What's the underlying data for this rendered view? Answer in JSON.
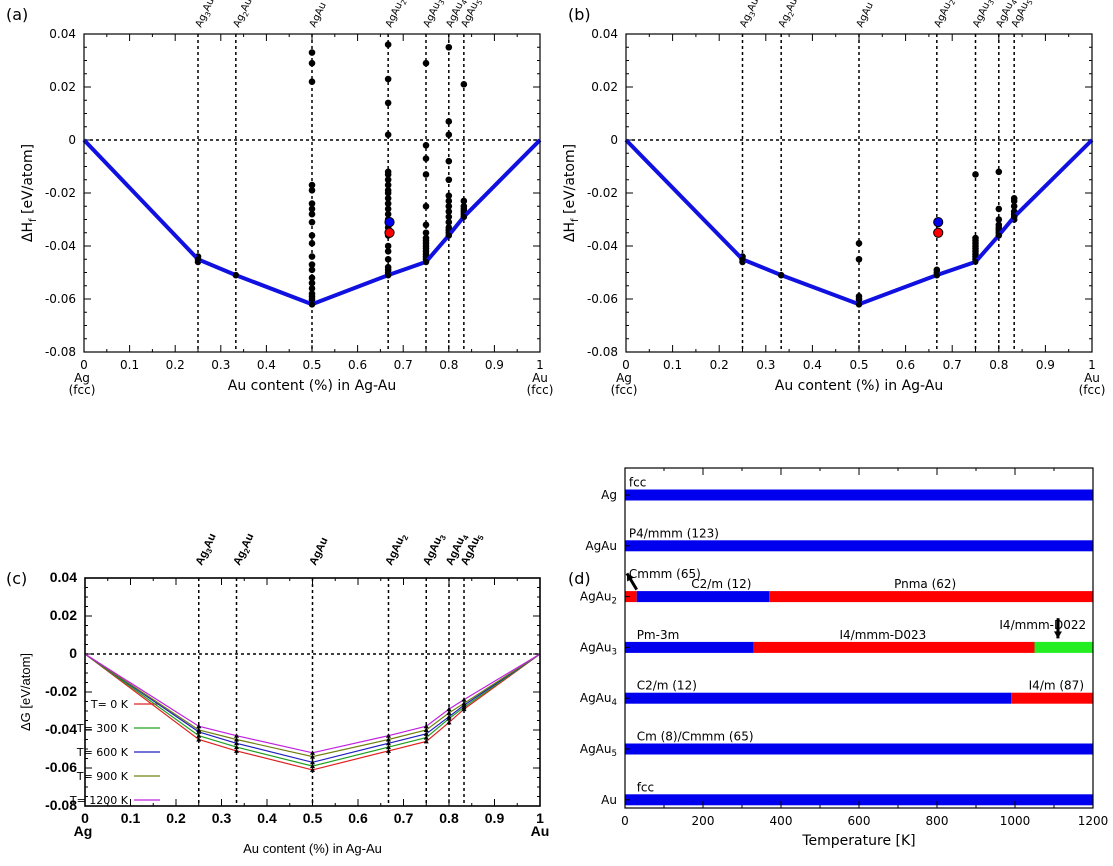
{
  "colors": {
    "hull": "#1010e0",
    "point": "#000000",
    "red": "#ff0000",
    "blue": "#0000ee",
    "green": "#22ee22"
  },
  "chart_data": [
    {
      "type": "scatter",
      "panel": "(a)",
      "xlabel": "Au content (%) in Ag-Au",
      "ylabel_main": "ΔH",
      "ylabel_sub": "f",
      "ylabel_unit": " [eV/atom]",
      "x_ticks": [
        "0",
        "0.1",
        "0.2",
        "0.3",
        "0.4",
        "0.5",
        "0.6",
        "0.7",
        "0.8",
        "0.9",
        "1"
      ],
      "y_ticks": [
        "-0.08",
        "-0.06",
        "-0.04",
        "-0.02",
        "0",
        "0.02",
        "0.04"
      ],
      "xlim": [
        0,
        1
      ],
      "ylim": [
        -0.08,
        0.04
      ],
      "end_labels": {
        "left": [
          "Ag",
          "(fcc)"
        ],
        "right": [
          "Au",
          "(fcc)"
        ]
      },
      "phase_lines": [
        {
          "x": 0.25,
          "base": "Ag",
          "sub": "3",
          "tail": "Au"
        },
        {
          "x": 0.333,
          "base": "Ag",
          "sub": "2",
          "tail": "Au"
        },
        {
          "x": 0.5,
          "base": "AgAu",
          "sub": "",
          "tail": ""
        },
        {
          "x": 0.667,
          "base": "AgAu",
          "sub": "2",
          "tail": ""
        },
        {
          "x": 0.75,
          "base": "AgAu",
          "sub": "3",
          "tail": ""
        },
        {
          "x": 0.8,
          "base": "AgAu",
          "sub": "4",
          "tail": ""
        },
        {
          "x": 0.833,
          "base": "AgAu",
          "sub": "5",
          "tail": ""
        }
      ],
      "hull": {
        "x": [
          0,
          0.25,
          0.333,
          0.5,
          0.667,
          0.75,
          0.8,
          0.833,
          1
        ],
        "y": [
          0,
          -0.045,
          -0.051,
          -0.062,
          -0.051,
          -0.046,
          -0.036,
          -0.029,
          0
        ]
      },
      "points": [
        {
          "x": 0.25,
          "y": [
            -0.044,
            -0.045,
            -0.046
          ]
        },
        {
          "x": 0.333,
          "y": [
            -0.051
          ]
        },
        {
          "x": 0.5,
          "y": [
            0.033,
            0.029,
            0.022,
            -0.017,
            -0.019,
            -0.024,
            -0.026,
            -0.028,
            -0.031,
            -0.036,
            -0.039,
            -0.044,
            -0.047,
            -0.049,
            -0.052,
            -0.054,
            -0.056,
            -0.058,
            -0.059,
            -0.06,
            -0.061,
            -0.062
          ]
        },
        {
          "x": 0.667,
          "y": [
            0.036,
            0.023,
            0.014,
            0.002,
            -0.012,
            -0.013,
            -0.015,
            -0.017,
            -0.019,
            -0.02,
            -0.022,
            -0.024,
            -0.026,
            -0.028,
            -0.03,
            -0.033,
            -0.036,
            -0.04,
            -0.042,
            -0.045,
            -0.048,
            -0.049,
            -0.05,
            -0.051
          ]
        },
        {
          "x": 0.75,
          "y": [
            0.029,
            -0.002,
            -0.007,
            -0.013,
            -0.025,
            -0.032,
            -0.035,
            -0.037,
            -0.038,
            -0.039,
            -0.04,
            -0.041,
            -0.042,
            -0.043,
            -0.044,
            -0.045,
            -0.046
          ]
        },
        {
          "x": 0.8,
          "y": [
            0.035,
            0.007,
            0.002,
            -0.008,
            -0.015,
            -0.021,
            -0.023,
            -0.025,
            -0.027,
            -0.029,
            -0.031,
            -0.033,
            -0.034,
            -0.035,
            -0.036
          ]
        },
        {
          "x": 0.833,
          "y": [
            0.021,
            -0.023,
            -0.025,
            -0.026,
            -0.027,
            -0.028,
            -0.029
          ]
        }
      ],
      "colored_points": [
        {
          "x": 0.67,
          "y": -0.031,
          "color": "#0000ee"
        },
        {
          "x": 0.67,
          "y": -0.035,
          "color": "#ff0000"
        }
      ]
    },
    {
      "type": "scatter",
      "panel": "(b)",
      "xlabel": "Au content (%) in Ag-Au",
      "ylabel_main": "ΔH",
      "ylabel_sub": "f",
      "ylabel_unit": " [eV/atom]",
      "x_ticks": [
        "0",
        "0.1",
        "0.2",
        "0.3",
        "0.4",
        "0.5",
        "0.6",
        "0.7",
        "0.8",
        "0.9",
        "1"
      ],
      "y_ticks": [
        "-0.08",
        "-0.06",
        "-0.04",
        "-0.02",
        "0",
        "0.02",
        "0.04"
      ],
      "xlim": [
        0,
        1
      ],
      "ylim": [
        -0.08,
        0.04
      ],
      "end_labels": {
        "left": [
          "Ag",
          "(fcc)"
        ],
        "right": [
          "Au",
          "(fcc)"
        ]
      },
      "phase_lines": [
        {
          "x": 0.25,
          "base": "Ag",
          "sub": "3",
          "tail": "Au"
        },
        {
          "x": 0.333,
          "base": "Ag",
          "sub": "2",
          "tail": "Au"
        },
        {
          "x": 0.5,
          "base": "AgAu",
          "sub": "",
          "tail": ""
        },
        {
          "x": 0.667,
          "base": "AgAu",
          "sub": "2",
          "tail": ""
        },
        {
          "x": 0.75,
          "base": "AgAu",
          "sub": "3",
          "tail": ""
        },
        {
          "x": 0.8,
          "base": "AgAu",
          "sub": "4",
          "tail": ""
        },
        {
          "x": 0.833,
          "base": "AgAu",
          "sub": "5",
          "tail": ""
        }
      ],
      "hull": {
        "x": [
          0,
          0.25,
          0.333,
          0.5,
          0.667,
          0.75,
          0.8,
          0.833,
          1
        ],
        "y": [
          0,
          -0.045,
          -0.051,
          -0.062,
          -0.051,
          -0.046,
          -0.036,
          -0.029,
          0
        ]
      },
      "points": [
        {
          "x": 0.25,
          "y": [
            -0.044,
            -0.045,
            -0.046
          ]
        },
        {
          "x": 0.333,
          "y": [
            -0.051
          ]
        },
        {
          "x": 0.5,
          "y": [
            -0.039,
            -0.045,
            -0.059,
            -0.06,
            -0.061,
            -0.062
          ]
        },
        {
          "x": 0.667,
          "y": [
            -0.049,
            -0.05,
            -0.051
          ]
        },
        {
          "x": 0.75,
          "y": [
            -0.013,
            -0.037,
            -0.038,
            -0.039,
            -0.04,
            -0.041,
            -0.042,
            -0.043,
            -0.044,
            -0.045
          ]
        },
        {
          "x": 0.8,
          "y": [
            -0.012,
            -0.026,
            -0.03,
            -0.032,
            -0.033,
            -0.034,
            -0.035,
            -0.036
          ]
        },
        {
          "x": 0.833,
          "y": [
            -0.022,
            -0.023,
            -0.025,
            -0.027,
            -0.028,
            -0.029,
            -0.03
          ]
        }
      ],
      "colored_points": [
        {
          "x": 0.67,
          "y": -0.031,
          "color": "#0000ee"
        },
        {
          "x": 0.67,
          "y": -0.035,
          "color": "#ff0000"
        }
      ]
    },
    {
      "type": "line",
      "panel": "(c)",
      "xlabel": "Au content (%) in Ag-Au",
      "ylabel": "ΔG [eV/atom]",
      "x_ticks": [
        "0",
        "0.1",
        "0.2",
        "0.3",
        "0.4",
        "0.5",
        "0.6",
        "0.7",
        "0.8",
        "0.9",
        "1"
      ],
      "y_ticks": [
        "-0.08",
        "-0.06",
        "-0.04",
        "-0.02",
        "0",
        "0.02",
        "0.04"
      ],
      "xlim": [
        0,
        1
      ],
      "ylim": [
        -0.08,
        0.04
      ],
      "end_labels": {
        "left": [
          "Ag"
        ],
        "right": [
          "Au"
        ]
      },
      "phase_lines": [
        {
          "x": 0.25,
          "base": "Ag",
          "sub": "3",
          "tail": "Au"
        },
        {
          "x": 0.333,
          "base": "Ag",
          "sub": "2",
          "tail": "Au"
        },
        {
          "x": 0.5,
          "base": "AgAu",
          "sub": "",
          "tail": ""
        },
        {
          "x": 0.667,
          "base": "AgAu",
          "sub": "2",
          "tail": ""
        },
        {
          "x": 0.75,
          "base": "AgAu",
          "sub": "3",
          "tail": ""
        },
        {
          "x": 0.8,
          "base": "AgAu",
          "sub": "4",
          "tail": ""
        },
        {
          "x": 0.833,
          "base": "AgAu",
          "sub": "5",
          "tail": ""
        }
      ],
      "x": [
        0,
        0.25,
        0.333,
        0.5,
        0.667,
        0.75,
        0.8,
        0.833,
        1
      ],
      "series": [
        {
          "name": "T= 0 K",
          "color": "#e02020",
          "values": [
            0,
            -0.045,
            -0.051,
            -0.061,
            -0.051,
            -0.046,
            -0.036,
            -0.029,
            0
          ]
        },
        {
          "name": "T= 300 K",
          "color": "#20a020",
          "values": [
            0,
            -0.043,
            -0.049,
            -0.059,
            -0.049,
            -0.044,
            -0.034,
            -0.028,
            0
          ]
        },
        {
          "name": "T= 600 K",
          "color": "#2020c0",
          "values": [
            0,
            -0.041,
            -0.047,
            -0.057,
            -0.047,
            -0.042,
            -0.033,
            -0.027,
            0
          ]
        },
        {
          "name": "T= 900 K",
          "color": "#708010",
          "values": [
            0,
            -0.04,
            -0.045,
            -0.054,
            -0.045,
            -0.04,
            -0.031,
            -0.026,
            0
          ]
        },
        {
          "name": "T= 1200 K",
          "color": "#c020e0",
          "values": [
            0,
            -0.038,
            -0.043,
            -0.052,
            -0.043,
            -0.038,
            -0.029,
            -0.024,
            0
          ]
        }
      ]
    },
    {
      "type": "bar",
      "panel": "(d)",
      "xlabel": "Temperature [K]",
      "x_ticks": [
        "0",
        "200",
        "400",
        "600",
        "800",
        "1000",
        "1200"
      ],
      "xlim": [
        0,
        1200
      ],
      "rows": [
        {
          "base": "Ag",
          "sub": "",
          "segments": [
            {
              "from": 0,
              "to": 1200,
              "color": "#0000ee"
            }
          ],
          "labels": [
            {
              "text": "fcc",
              "at": 10
            }
          ]
        },
        {
          "base": "AgAu",
          "sub": "",
          "segments": [
            {
              "from": 0,
              "to": 1200,
              "color": "#0000ee"
            }
          ],
          "labels": [
            {
              "text": "P4/mmm (123)",
              "at": 10
            }
          ]
        },
        {
          "base": "AgAu",
          "sub": "2",
          "segments": [
            {
              "from": 0,
              "to": 30,
              "color": "#ff0000"
            },
            {
              "from": 30,
              "to": 370,
              "color": "#0000ee"
            },
            {
              "from": 370,
              "to": 1200,
              "color": "#ff0000"
            }
          ],
          "labels": [
            {
              "text": "Cmmm (65)",
              "at": 10,
              "above": 2
            },
            {
              "text": "C2/m (12)",
              "at": 170
            },
            {
              "text": "Pnma (62)",
              "at": 690
            }
          ],
          "arrow": {
            "from_t": 30,
            "to_t": 5,
            "rise": 1.3
          }
        },
        {
          "base": "AgAu",
          "sub": "3",
          "segments": [
            {
              "from": 0,
              "to": 330,
              "color": "#0000ee"
            },
            {
              "from": 330,
              "to": 1050,
              "color": "#ff0000"
            },
            {
              "from": 1050,
              "to": 1200,
              "color": "#22ee22"
            }
          ],
          "labels": [
            {
              "text": "Pm-3m",
              "at": 30
            },
            {
              "text": "I4/mmm-D023",
              "at": 550
            },
            {
              "text": "I4/mmm-D022",
              "at": 960,
              "above": 2
            }
          ],
          "arrow": {
            "from_t": 1110,
            "to_t": 1090,
            "rise": -1.3
          }
        },
        {
          "base": "AgAu",
          "sub": "4",
          "segments": [
            {
              "from": 0,
              "to": 990,
              "color": "#0000ee"
            },
            {
              "from": 990,
              "to": 1200,
              "color": "#ff0000"
            }
          ],
          "labels": [
            {
              "text": "C2/m (12)",
              "at": 30
            },
            {
              "text": "I4/m (87)",
              "at": 1035
            }
          ]
        },
        {
          "base": "AgAu",
          "sub": "5",
          "segments": [
            {
              "from": 0,
              "to": 1200,
              "color": "#0000ee"
            }
          ],
          "labels": [
            {
              "text": "Cm (8)/Cmmm (65)",
              "at": 30
            }
          ]
        },
        {
          "base": "Au",
          "sub": "",
          "segments": [
            {
              "from": 0,
              "to": 1200,
              "color": "#0000ee"
            }
          ],
          "labels": [
            {
              "text": "fcc",
              "at": 30
            }
          ]
        }
      ]
    }
  ]
}
